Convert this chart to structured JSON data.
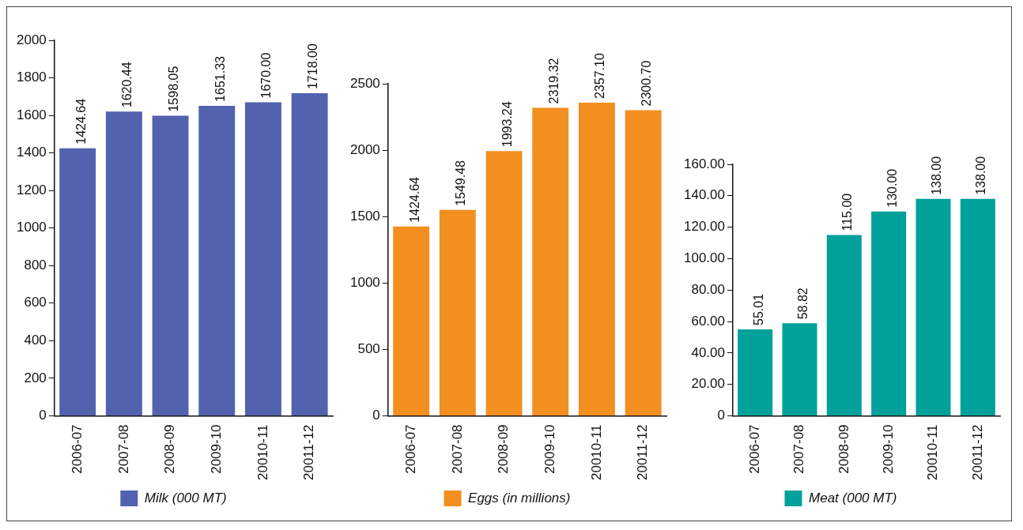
{
  "chart_data": [
    {
      "type": "bar",
      "categories": [
        "2006-07",
        "2007-08",
        "2008-09",
        "2009-10",
        "20010-11",
        "20011-12"
      ],
      "ylim": [
        0,
        2000
      ],
      "yticks": [
        0,
        200,
        400,
        600,
        800,
        1000,
        1200,
        1400,
        1600,
        1800,
        2000
      ],
      "grid": false,
      "legend": "bottom",
      "series": [
        {
          "name": "Milk (000 MT)",
          "color": "#5262ae",
          "values": [
            1424.64,
            1620.44,
            1598.05,
            1651.33,
            1670,
            1718
          ],
          "value_labels": [
            "1424.64",
            "1620.44",
            "1598.05",
            "1651.33",
            "1670.00",
            "1718.00"
          ]
        }
      ]
    },
    {
      "type": "bar",
      "categories": [
        "2006-07",
        "2007-08",
        "2008-09",
        "2009-10",
        "20010-11",
        "20011-12"
      ],
      "ylim": [
        0,
        2500
      ],
      "yticks": [
        0,
        500,
        1000,
        1500,
        2000,
        2500
      ],
      "grid": false,
      "legend": "bottom",
      "series": [
        {
          "name": "Eggs (in millions)",
          "color": "#f38f20",
          "values": [
            1424.64,
            1549.48,
            1993.24,
            2319.32,
            2357.1,
            2300.7
          ],
          "value_labels": [
            "1424.64",
            "1549.48",
            "1993.24",
            "2319.32",
            "2357.10",
            "2300.70"
          ]
        }
      ]
    },
    {
      "type": "bar",
      "categories": [
        "2006-07",
        "2007-08",
        "2008-09",
        "2009-10",
        "20010-11",
        "20011-12"
      ],
      "ylim": [
        0,
        160
      ],
      "yticks": [
        0,
        {
          "value": 20,
          "label": "20.00"
        },
        {
          "value": 40,
          "label": "40.00"
        },
        {
          "value": 60,
          "label": "60.00"
        },
        {
          "value": 80,
          "label": "80.00"
        },
        {
          "value": 100,
          "label": "100.00"
        },
        {
          "value": 120,
          "label": "120.00"
        },
        {
          "value": 140,
          "label": "140.00"
        },
        {
          "value": 160,
          "label": "160.00"
        }
      ],
      "grid": false,
      "legend": "bottom",
      "series": [
        {
          "name": "Meat (000 MT)",
          "color": "#00a19a",
          "values": [
            55.01,
            58.82,
            115,
            130,
            138,
            138
          ],
          "value_labels": [
            "55.01",
            "58.82",
            "115.00",
            "130.00",
            "138.00",
            "138.00"
          ]
        }
      ]
    }
  ]
}
